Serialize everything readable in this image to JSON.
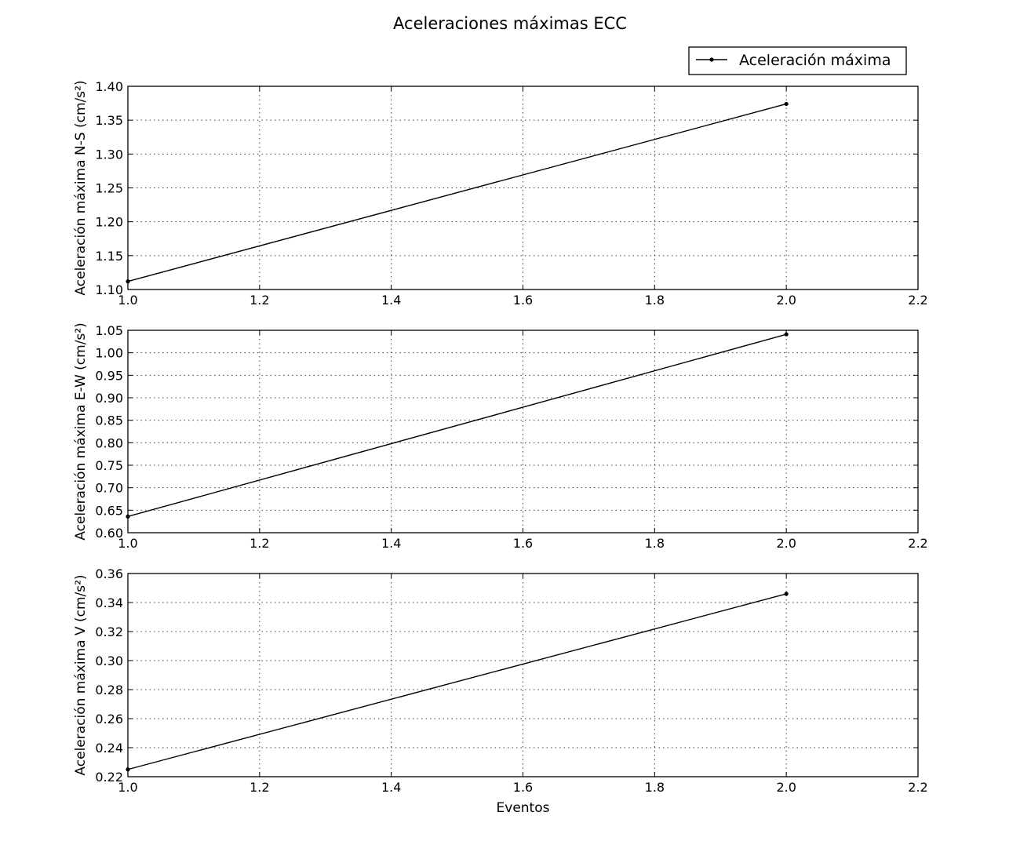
{
  "figure": {
    "title": "Aceleraciones máximas ECC",
    "legend_label": "Aceleración máxima",
    "legend_placement": "top-right",
    "line_color": "#000000",
    "background": "#ffffff"
  },
  "chart_data": [
    {
      "type": "line",
      "xlabel": "",
      "ylabel": "Aceleración máxima N-S (cm/s²)",
      "x": [
        1.0,
        2.0
      ],
      "series": [
        {
          "name": "Aceleración máxima",
          "values": [
            1.112,
            1.374
          ]
        }
      ],
      "xlim": [
        1.0,
        2.2
      ],
      "ylim": [
        1.1,
        1.4
      ],
      "xticks": [
        "1.0",
        "1.2",
        "1.4",
        "1.6",
        "1.8",
        "2.0",
        "2.2"
      ],
      "yticks": [
        "1.10",
        "1.15",
        "1.20",
        "1.25",
        "1.30",
        "1.35",
        "1.40"
      ],
      "grid": true
    },
    {
      "type": "line",
      "xlabel": "",
      "ylabel": "Aceleración máxima E-W (cm/s²)",
      "x": [
        1.0,
        2.0
      ],
      "series": [
        {
          "name": "Aceleración máxima",
          "values": [
            0.636,
            1.041
          ]
        }
      ],
      "xlim": [
        1.0,
        2.2
      ],
      "ylim": [
        0.6,
        1.05
      ],
      "xticks": [
        "1.0",
        "1.2",
        "1.4",
        "1.6",
        "1.8",
        "2.0",
        "2.2"
      ],
      "yticks": [
        "0.60",
        "0.65",
        "0.70",
        "0.75",
        "0.80",
        "0.85",
        "0.90",
        "0.95",
        "1.00",
        "1.05"
      ],
      "grid": true
    },
    {
      "type": "line",
      "xlabel": "Eventos",
      "ylabel": "Aceleración máxima V (cm/s²)",
      "x": [
        1.0,
        2.0
      ],
      "series": [
        {
          "name": "Aceleración máxima",
          "values": [
            0.225,
            0.346
          ]
        }
      ],
      "xlim": [
        1.0,
        2.2
      ],
      "ylim": [
        0.22,
        0.36
      ],
      "xticks": [
        "1.0",
        "1.2",
        "1.4",
        "1.6",
        "1.8",
        "2.0",
        "2.2"
      ],
      "yticks": [
        "0.22",
        "0.24",
        "0.26",
        "0.28",
        "0.30",
        "0.32",
        "0.34",
        "0.36"
      ],
      "grid": true
    }
  ]
}
